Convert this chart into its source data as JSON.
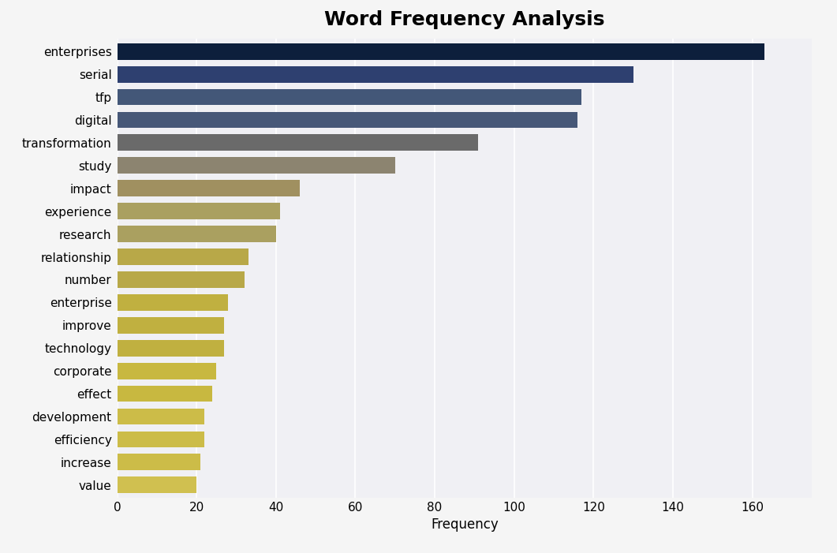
{
  "title": "Word Frequency Analysis",
  "xlabel": "Frequency",
  "categories": [
    "enterprises",
    "serial",
    "tfp",
    "digital",
    "transformation",
    "study",
    "impact",
    "experience",
    "research",
    "relationship",
    "number",
    "enterprise",
    "improve",
    "technology",
    "corporate",
    "effect",
    "development",
    "efficiency",
    "increase",
    "value"
  ],
  "values": [
    163,
    130,
    117,
    116,
    91,
    70,
    46,
    41,
    40,
    33,
    32,
    28,
    27,
    27,
    25,
    24,
    22,
    22,
    21,
    20
  ],
  "bar_colors": [
    "#0d1f3c",
    "#2e4070",
    "#435778",
    "#475878",
    "#6a6a6a",
    "#8c8470",
    "#a09060",
    "#aaa060",
    "#aaa060",
    "#b8a848",
    "#b8a848",
    "#c0b040",
    "#c0b040",
    "#c0b040",
    "#c8b840",
    "#c8b840",
    "#ccbc48",
    "#ccbc48",
    "#ccbc48",
    "#d0c050"
  ],
  "background_color": "#f5f5f5",
  "plot_background": "#f0f0f4",
  "title_fontsize": 18,
  "tick_fontsize": 11,
  "label_fontsize": 12,
  "xticks": [
    0,
    20,
    40,
    60,
    80,
    100,
    120,
    140,
    160
  ],
  "xlim": [
    0,
    175
  ]
}
